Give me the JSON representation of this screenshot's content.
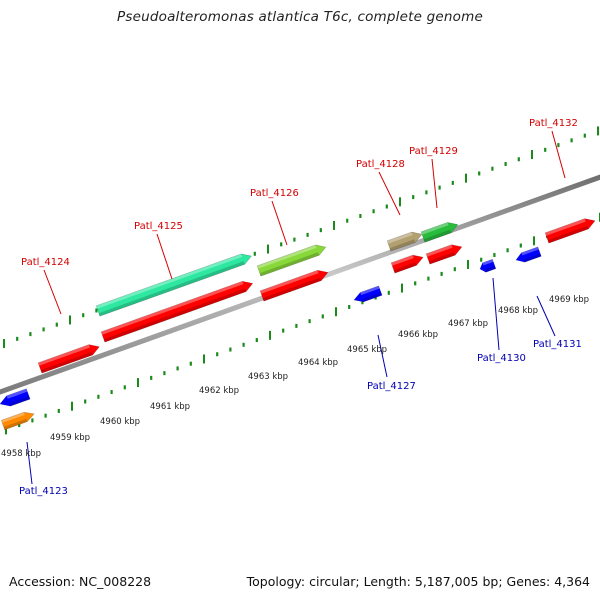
{
  "header": {
    "title": "Pseudoalteromonas atlantica T6c, complete genome"
  },
  "footer": {
    "accession": "Accession: NC_008228",
    "stats": "Topology: circular; Length: 5,187,005 bp; Genes: 4,364"
  },
  "colors": {
    "forward_cds": "#ff0000",
    "reverse_cds": "#0000ff",
    "tick_mark": "#1a8a1a",
    "backbone": "#888888",
    "forward_label": "#d40000",
    "reverse_label": "#0000b4"
  },
  "scale_labels": [
    "4958 kbp",
    "4959 kbp",
    "4960 kbp",
    "4961 kbp",
    "4962 kbp",
    "4963 kbp",
    "4964 kbp",
    "4965 kbp",
    "4966 kbp",
    "4967 kbp",
    "4968 kbp",
    "4969 kbp"
  ],
  "gene_labels": [
    {
      "text": "Patl_4123",
      "strand": "reverse"
    },
    {
      "text": "Patl_4124",
      "strand": "forward"
    },
    {
      "text": "Patl_4125",
      "strand": "forward"
    },
    {
      "text": "Patl_4126",
      "strand": "forward"
    },
    {
      "text": "Patl_4127",
      "strand": "reverse"
    },
    {
      "text": "Patl_4128",
      "strand": "forward"
    },
    {
      "text": "Patl_4129",
      "strand": "forward"
    },
    {
      "text": "Patl_4130",
      "strand": "reverse"
    },
    {
      "text": "Patl_4131",
      "strand": "reverse"
    },
    {
      "text": "Patl_4132",
      "strand": "forward"
    }
  ]
}
